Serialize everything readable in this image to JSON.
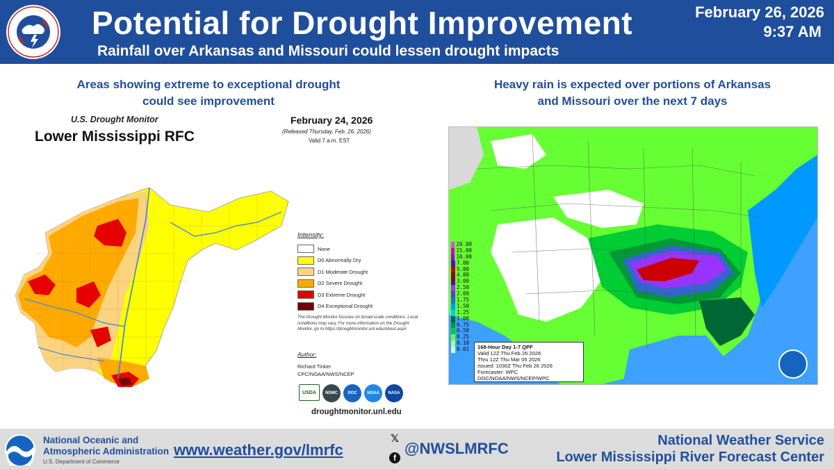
{
  "header": {
    "title": "Potential for Drought Improvement",
    "subtitle": "Rainfall over Arkansas and Missouri could lessen drought impacts",
    "date": "February 26, 2026",
    "time": "9:37 AM",
    "logo_text": "NATIONAL WEATHER SERVICE"
  },
  "left_panel": {
    "heading_line1": "Areas showing extreme to exceptional drought",
    "heading_line2": "could see improvement",
    "monitor": {
      "small_title": "U.S. Drought Monitor",
      "big_title": "Lower Mississippi RFC",
      "date": "February 24, 2026",
      "released": "(Released Thursday, Feb. 26, 2026)",
      "valid": "Valid 7 a.m. EST",
      "legend_title": "Intensity:",
      "legend": [
        {
          "label": "None",
          "color": "#ffffff"
        },
        {
          "label": "D0 Abnormally Dry",
          "color": "#ffff00"
        },
        {
          "label": "D1 Moderate Drought",
          "color": "#fcd37f"
        },
        {
          "label": "D2 Severe Drought",
          "color": "#ffaa00"
        },
        {
          "label": "D3 Extreme Drought",
          "color": "#e60000"
        },
        {
          "label": "D4 Exceptional Drought",
          "color": "#730000"
        }
      ],
      "note": "The Drought Monitor focuses on broad-scale conditions. Local conditions may vary. For more information on the Drought Monitor, go to https://droughtmonitor.unl.edu/About.aspx",
      "author_label": "Author:",
      "author_name": "Richard Tinker",
      "author_org": "CPC/NOAA/NWS/NCEP",
      "partners": [
        "USDA",
        "NDMC",
        "DOC",
        "NOAA",
        "NASA"
      ],
      "url": "droughtmonitor.unl.edu"
    }
  },
  "right_panel": {
    "heading_line1": "Heavy rain is expected over portions of Arkansas",
    "heading_line2": "and Missouri over the next 7 days",
    "qpf": {
      "scale": [
        {
          "label": "20.00",
          "color": "#ff33ff"
        },
        {
          "label": "15.00",
          "color": "#cc00cc"
        },
        {
          "label": "10.00",
          "color": "#9900cc"
        },
        {
          "label": "7.00",
          "color": "#6600cc"
        },
        {
          "label": "5.00",
          "color": "#cc0000"
        },
        {
          "label": "4.00",
          "color": "#990000"
        },
        {
          "label": "3.00",
          "color": "#660099"
        },
        {
          "label": "2.50",
          "color": "#9933ff"
        },
        {
          "label": "2.00",
          "color": "#6633cc"
        },
        {
          "label": "1.75",
          "color": "#3366cc"
        },
        {
          "label": "1.50",
          "color": "#0099ff"
        },
        {
          "label": "1.25",
          "color": "#00ccff"
        },
        {
          "label": "1.00",
          "color": "#006633"
        },
        {
          "label": "0.75",
          "color": "#009933"
        },
        {
          "label": "0.50",
          "color": "#00cc33"
        },
        {
          "label": "0.25",
          "color": "#66ff33"
        },
        {
          "label": "0.10",
          "color": "#99ff99"
        },
        {
          "label": "0.01",
          "color": "#ccffcc"
        }
      ],
      "info": [
        "168-Hour Day 1-7 QPF",
        "Valid 12Z Thu Feb 26 2026",
        "Thru 12Z Thu Mar 05 2026",
        "Issued: 1030Z Thu Feb 26 2026",
        "Forecaster: WPC",
        "DOC/NOAA/NWS/NCEP/WPC"
      ],
      "badge_text": "NOAA"
    }
  },
  "footer": {
    "noaa_line1": "National Oceanic and",
    "noaa_line2": "Atmospheric Administration",
    "doc": "U.S. Department of Commerce",
    "website": "www.weather.gov/lmrfc",
    "handle": "@NWSLMRFC",
    "nws": "National Weather Service",
    "rfc": "Lower Mississippi River Forecast Center"
  }
}
